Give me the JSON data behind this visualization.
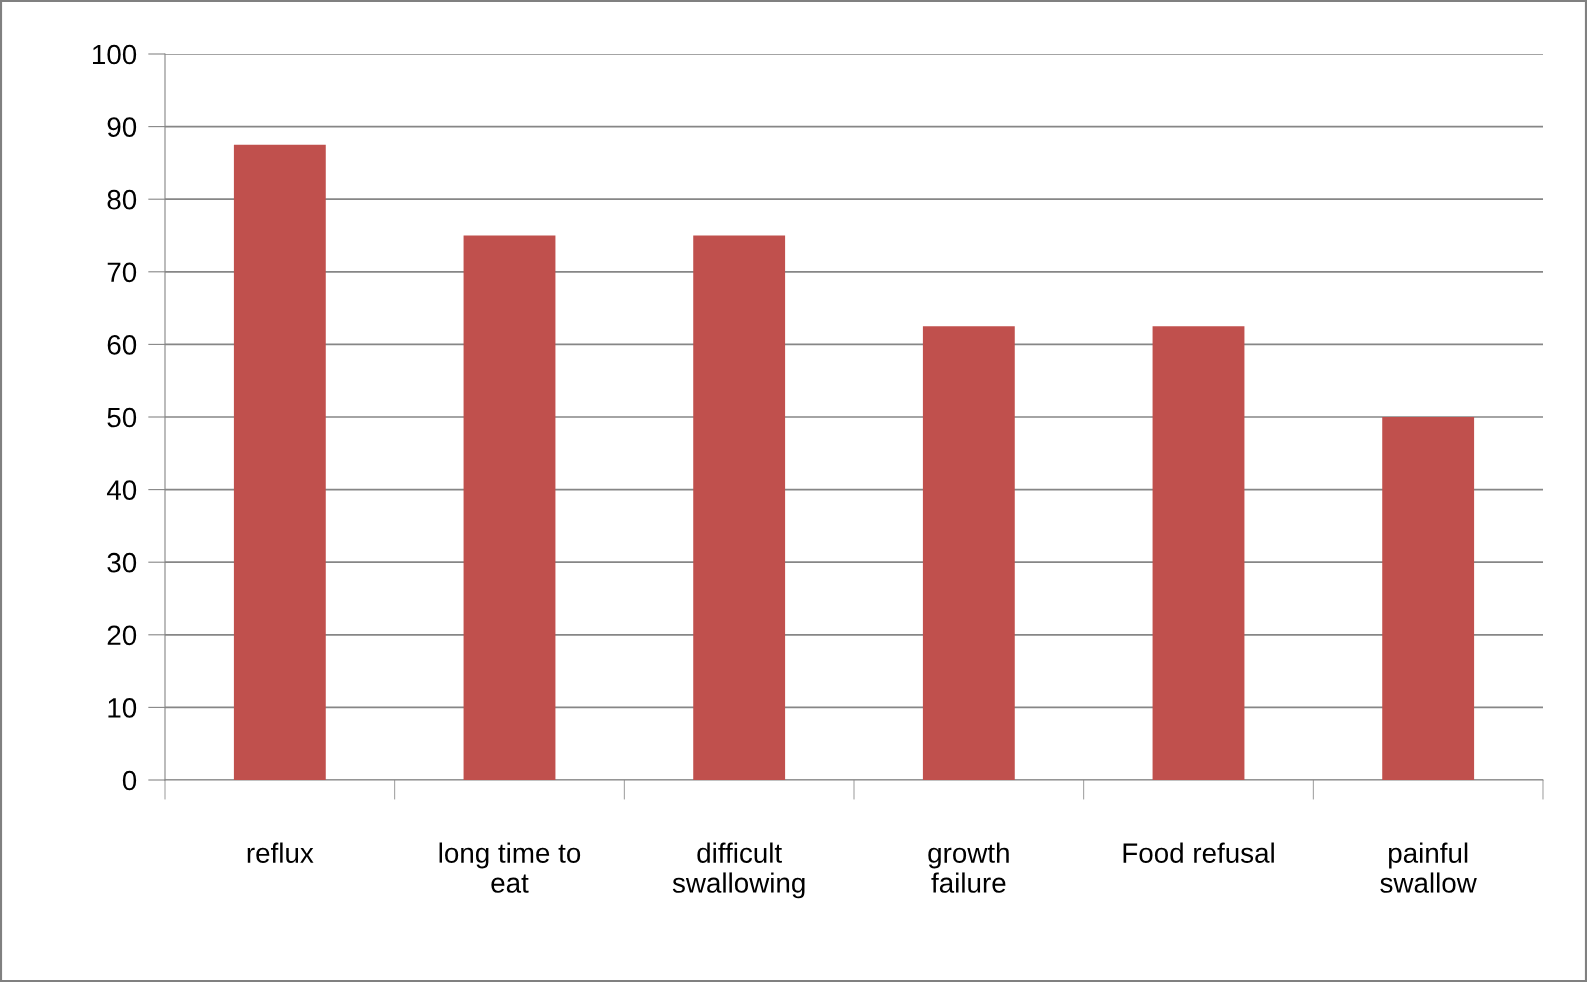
{
  "chart_data": {
    "type": "bar",
    "categories": [
      "reflux",
      "long time to\neat",
      "difficult\nswallowing",
      "growth\nfailure",
      "Food refusal",
      "painful\nswallow"
    ],
    "values": [
      87.5,
      75,
      75,
      62.5,
      62.5,
      50
    ],
    "color": "#c0504d",
    "ylim": [
      0,
      100
    ],
    "yticks": [
      0,
      10,
      20,
      30,
      40,
      50,
      60,
      70,
      80,
      90,
      100
    ],
    "grid": "y",
    "legend": false
  }
}
